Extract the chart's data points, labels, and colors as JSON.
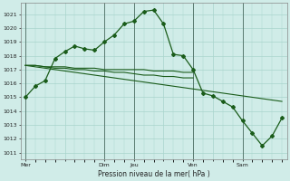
{
  "title": "Pression niveau de la mer( hPa )",
  "background_color": "#d0ece8",
  "grid_color": "#a8d4cc",
  "line_color": "#1a5c1a",
  "ylim": [
    1010.5,
    1021.8
  ],
  "yticks": [
    1011,
    1012,
    1013,
    1014,
    1015,
    1016,
    1017,
    1018,
    1019,
    1020,
    1021
  ],
  "x_tick_labels": [
    "Mer",
    "",
    "Dim",
    "Jeu",
    "",
    "Ven",
    "",
    "Sam"
  ],
  "x_tick_positions": [
    0,
    4,
    8,
    11,
    14,
    17,
    19,
    22
  ],
  "vlines": [
    0,
    8,
    11,
    17,
    22
  ],
  "series0": [
    1015.0,
    1015.8,
    1016.2,
    1017.8,
    1018.3,
    1018.7,
    1018.5,
    1018.4,
    1019.0,
    1019.5,
    1020.3,
    1020.5,
    1021.2,
    1021.3,
    1020.3,
    1018.1,
    1018.0,
    1017.0,
    1015.3,
    1015.1,
    1014.7,
    1014.3,
    1013.3,
    1012.4,
    1011.5,
    1012.2,
    1013.5
  ],
  "series1": [
    1017.3,
    1017.3,
    1017.2,
    1017.2,
    1017.2,
    1017.1,
    1017.1,
    1017.1,
    1017.0,
    1017.0,
    1017.0,
    1017.0,
    1017.0,
    1016.9,
    1016.9,
    1016.9,
    1016.8,
    1016.8
  ],
  "series2": [
    1017.3,
    1017.3,
    1017.2,
    1017.1,
    1017.1,
    1017.0,
    1017.0,
    1016.9,
    1016.9,
    1016.8,
    1016.8,
    1016.7,
    1016.6,
    1016.6,
    1016.5,
    1016.5,
    1016.4,
    1016.4
  ],
  "series3_x": [
    0,
    1,
    2,
    3,
    4,
    5,
    6,
    7,
    8,
    9,
    10,
    11,
    12,
    13,
    14,
    15,
    16,
    17,
    18,
    19,
    20,
    21,
    22,
    23,
    24,
    25,
    26
  ],
  "series3": [
    1017.3,
    1017.2,
    1017.1,
    1017.0,
    1016.9,
    1016.8,
    1016.7,
    1016.6,
    1016.5,
    1016.4,
    1016.3,
    1016.2,
    1016.1,
    1016.0,
    1015.9,
    1015.8,
    1015.7,
    1015.6,
    1015.5,
    1015.4,
    1015.3,
    1015.2,
    1015.1,
    1015.0,
    1014.9,
    1014.8,
    1014.7
  ]
}
